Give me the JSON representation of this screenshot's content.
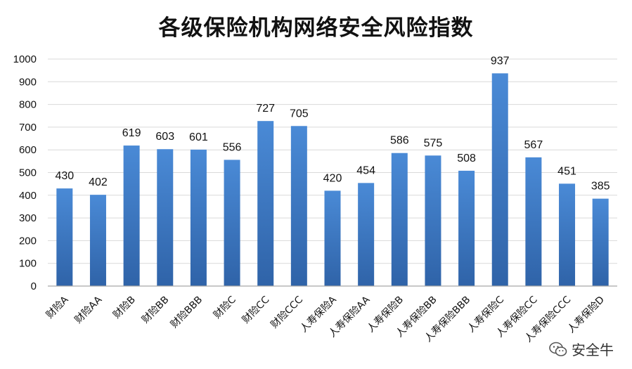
{
  "chart_data": {
    "type": "bar",
    "title": "各级保险机构网络安全风险指数",
    "categories": [
      "财险A",
      "财险AA",
      "财险B",
      "财险BB",
      "财险BBB",
      "财险C",
      "财险CC",
      "财险CCC",
      "人寿保险A",
      "人寿保险AA",
      "人寿保险B",
      "人寿保险BB",
      "人寿保险BBB",
      "人寿保险C",
      "人寿保险CC",
      "人寿保险CCC",
      "人寿保险D"
    ],
    "values": [
      430,
      402,
      619,
      603,
      601,
      556,
      727,
      705,
      420,
      454,
      586,
      575,
      508,
      937,
      567,
      451,
      385
    ],
    "yticks": [
      "0",
      "100",
      "200",
      "300",
      "400",
      "500",
      "600",
      "700",
      "800",
      "900",
      "1000"
    ],
    "ylim": [
      0,
      1000
    ],
    "grid": true,
    "legend": "none",
    "colors": {
      "bar_top": "#4a8ad6",
      "bar_bottom": "#2f63a8",
      "grid": "#d9d9d9",
      "axis": "#a6a6a6"
    }
  },
  "watermark": {
    "text": "安全牛",
    "icon": "wechat-icon"
  }
}
